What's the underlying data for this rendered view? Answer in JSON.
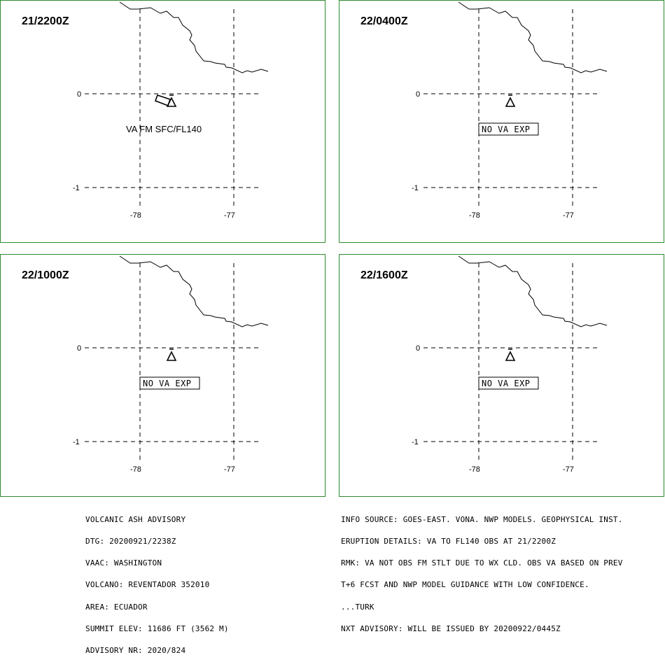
{
  "panels": [
    {
      "time": "21/2200Z",
      "label": "VA FM SFC/FL140",
      "boxed": false,
      "ash_area": true
    },
    {
      "time": "22/0400Z",
      "label": "NO VA EXP",
      "boxed": true,
      "ash_area": false
    },
    {
      "time": "22/1000Z",
      "label": "NO VA EXP",
      "boxed": true,
      "ash_area": false
    },
    {
      "time": "22/1600Z",
      "label": "NO VA EXP",
      "boxed": true,
      "ash_area": false
    }
  ],
  "axes": {
    "lat_labels": [
      "0",
      "-1"
    ],
    "lon_labels": [
      "-78",
      "-77"
    ]
  },
  "colors": {
    "panel_border": "#2e8b2e",
    "lines": "#000000"
  },
  "icons": {
    "volcano": "volcano-triangle-icon"
  },
  "advisory_left": [
    "VOLCANIC ASH ADVISORY",
    "DTG: 20200921/2238Z",
    "VAAC: WASHINGTON",
    "VOLCANO: REVENTADOR 352010",
    "AREA: ECUADOR",
    "SUMMIT ELEV: 11686 FT (3562 M)",
    "ADVISORY NR: 2020/824"
  ],
  "advisory_right": [
    "INFO SOURCE: GOES-EAST. VONA. NWP MODELS. GEOPHYSICAL INST.",
    "ERUPTION DETAILS: VA TO FL140 OBS AT 21/2200Z",
    "RMK: VA NOT OBS FM STLT DUE TO WX CLD. OBS VA BASED ON PREV",
    "T+6 FCST AND NWP MODEL GUIDANCE WITH LOW CONFIDENCE.",
    "...TURK",
    "NXT ADVISORY: WILL BE ISSUED BY 20200922/0445Z"
  ]
}
